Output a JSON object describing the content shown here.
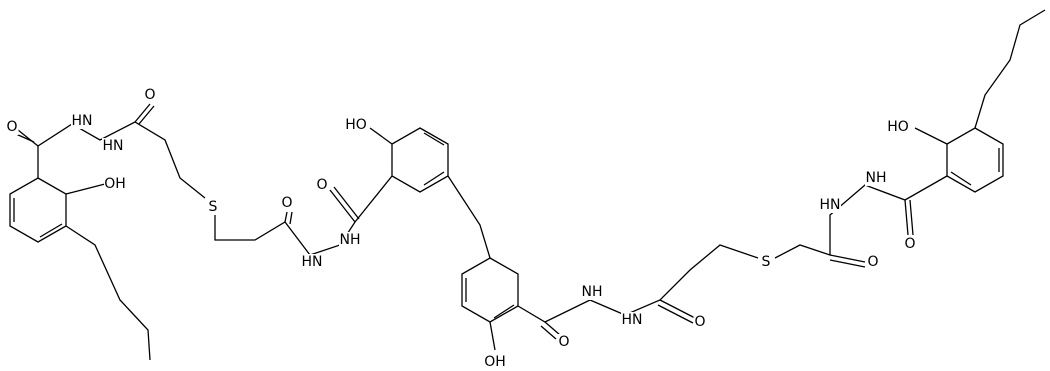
{
  "atoms": [
    "O",
    "HN",
    "HN",
    "O",
    "OH",
    "S",
    "O",
    "HN",
    "NH",
    "O",
    "HO",
    "OH",
    "O",
    "NH",
    "HN",
    "O",
    "S",
    "O",
    "HN",
    "NH",
    "HO",
    "O"
  ]
}
